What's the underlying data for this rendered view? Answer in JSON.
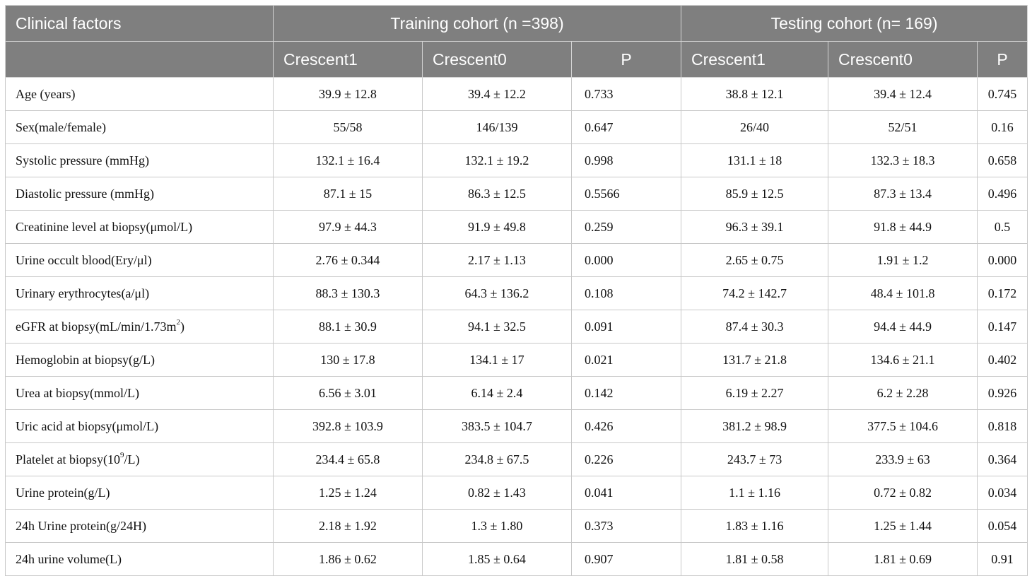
{
  "header": {
    "clinical_factors": "Clinical factors",
    "training_cohort": "Training cohort (n =398)",
    "testing_cohort": "Testing cohort (n= 169)",
    "crescent1": "Crescent1",
    "crescent0": "Crescent0",
    "p": "P"
  },
  "rows": [
    {
      "label": "Age (years)",
      "tr_c1": "39.9 ± 12.8",
      "tr_c0": "39.4 ± 12.2",
      "tr_p": "0.733",
      "te_c1": "38.8 ± 12.1",
      "te_c0": "39.4 ± 12.4",
      "te_p": "0.745"
    },
    {
      "label": "Sex(male/female)",
      "tr_c1": "55/58",
      "tr_c0": "146/139",
      "tr_p": "0.647",
      "te_c1": "26/40",
      "te_c0": "52/51",
      "te_p": "0.16"
    },
    {
      "label": "Systolic pressure (mmHg)",
      "tr_c1": "132.1 ± 16.4",
      "tr_c0": "132.1 ± 19.2",
      "tr_p": "0.998",
      "te_c1": "131.1 ± 18",
      "te_c0": "132.3 ± 18.3",
      "te_p": "0.658"
    },
    {
      "label": "Diastolic pressure (mmHg)",
      "tr_c1": "87.1 ± 15",
      "tr_c0": "86.3 ± 12.5",
      "tr_p": "0.5566",
      "te_c1": "85.9 ± 12.5",
      "te_c0": "87.3 ± 13.4",
      "te_p": "0.496"
    },
    {
      "label": "Creatinine level at biopsy(μmol/L)",
      "tr_c1": "97.9 ± 44.3",
      "tr_c0": "91.9 ± 49.8",
      "tr_p": "0.259",
      "te_c1": "96.3 ± 39.1",
      "te_c0": "91.8 ± 44.9",
      "te_p": "0.5"
    },
    {
      "label": "Urine occult blood(Ery/μl)",
      "tr_c1": "2.76 ± 0.344",
      "tr_c0": "2.17 ± 1.13",
      "tr_p": "0.000",
      "te_c1": "2.65 ± 0.75",
      "te_c0": "1.91 ± 1.2",
      "te_p": "0.000"
    },
    {
      "label": "Urinary erythrocytes(a/μl)",
      "tr_c1": "88.3 ± 130.3",
      "tr_c0": "64.3 ± 136.2",
      "tr_p": "0.108",
      "te_c1": "74.2 ± 142.7",
      "te_c0": "48.4 ± 101.8",
      "te_p": "0.172"
    },
    {
      "label": "eGFR at biopsy(mL/min/1.73m",
      "label_sup": "2",
      "label_tail": ")",
      "tr_c1": "88.1 ± 30.9",
      "tr_c0": "94.1 ± 32.5",
      "tr_p": "0.091",
      "te_c1": "87.4 ± 30.3",
      "te_c0": "94.4 ± 44.9",
      "te_p": "0.147"
    },
    {
      "label": "Hemoglobin at biopsy(g/L)",
      "tr_c1": "130 ± 17.8",
      "tr_c0": "134.1 ± 17",
      "tr_p": "0.021",
      "te_c1": "131.7 ± 21.8",
      "te_c0": "134.6 ± 21.1",
      "te_p": "0.402"
    },
    {
      "label": "Urea at biopsy(mmol/L)",
      "tr_c1": "6.56 ± 3.01",
      "tr_c0": "6.14 ± 2.4",
      "tr_p": "0.142",
      "te_c1": "6.19 ± 2.27",
      "te_c0": "6.2 ± 2.28",
      "te_p": "0.926"
    },
    {
      "label": "Uric acid at biopsy(μmol/L)",
      "tr_c1": "392.8 ± 103.9",
      "tr_c0": "383.5 ± 104.7",
      "tr_p": "0.426",
      "te_c1": "381.2 ± 98.9",
      "te_c0": "377.5 ± 104.6",
      "te_p": "0.818"
    },
    {
      "label": "Platelet at biopsy(10",
      "label_sup": "9",
      "label_tail": "/L)",
      "tr_c1": "234.4 ± 65.8",
      "tr_c0": "234.8 ± 67.5",
      "tr_p": "0.226",
      "te_c1": "243.7 ± 73",
      "te_c0": "233.9 ± 63",
      "te_p": "0.364"
    },
    {
      "label": "Urine protein(g/L)",
      "tr_c1": "1.25 ± 1.24",
      "tr_c0": "0.82 ± 1.43",
      "tr_p": "0.041",
      "te_c1": "1.1 ± 1.16",
      "te_c0": "0.72 ± 0.82",
      "te_p": "0.034"
    },
    {
      "label": "24h Urine protein(g/24H)",
      "tr_c1": "2.18 ± 1.92",
      "tr_c0": "1.3 ± 1.80",
      "tr_p": "0.373",
      "te_c1": "1.83 ± 1.16",
      "te_c0": "1.25 ± 1.44",
      "te_p": "0.054"
    },
    {
      "label": "24h urine volume(L)",
      "tr_c1": "1.86 ± 0.62",
      "tr_c0": "1.85 ± 0.64",
      "tr_p": "0.907",
      "te_c1": "1.81 ± 0.58",
      "te_c0": "1.81 ± 0.69",
      "te_p": "0.91"
    }
  ]
}
